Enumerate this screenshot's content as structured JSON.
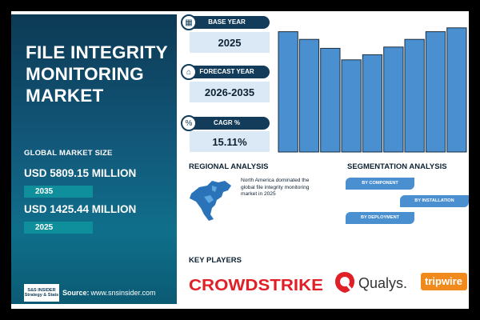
{
  "left_panel": {
    "title": "FILE INTEGRITY MONITORING MARKET",
    "market_size_label": "GLOBAL MARKET SIZE",
    "value_2035": "USD 5809.15 MILLION",
    "year_2035": "2035",
    "value_2025": "USD 1425.44 MILLION",
    "year_2025": "2025",
    "source_label": "Source:",
    "source_url": "www.snsinsider.com",
    "logo_text_top": "S&S INSIDER",
    "logo_text_bottom": "Strategy & Stats"
  },
  "cards": {
    "base_year_label": "BASE YEAR",
    "base_year_value": "2025",
    "forecast_year_label": "FORECAST YEAR",
    "forecast_year_value": "2026-2035",
    "cagr_label": "CAGR %",
    "cagr_value": "15.11%"
  },
  "regional": {
    "title": "REGIONAL ANALYSIS",
    "text": "North America dominated the global file integrity monitoring market in 2025"
  },
  "segmentation": {
    "title": "SEGMENTATION ANALYSIS",
    "items": [
      "BY COMPONENT",
      "BY INSTALLATION",
      "BY DEPLOYMENT"
    ]
  },
  "key_players": {
    "title": "KEY PLAYERS",
    "logos": [
      "CROWDSTRIKE",
      "Qualys.",
      "tripwire"
    ]
  },
  "colors": {
    "panel_dark": "#0c3a55",
    "accent_teal": "#0f8f9b",
    "bar_blue": "#4a8fd0",
    "card_bg": "#dbe9f7",
    "crowdstrike_red": "#e01f26",
    "tripwire_orange": "#f08a1c"
  },
  "chart_data": {
    "type": "bar",
    "values": [
      0.94,
      0.88,
      0.81,
      0.72,
      0.76,
      0.82,
      0.88,
      0.94,
      0.97
    ]
  }
}
